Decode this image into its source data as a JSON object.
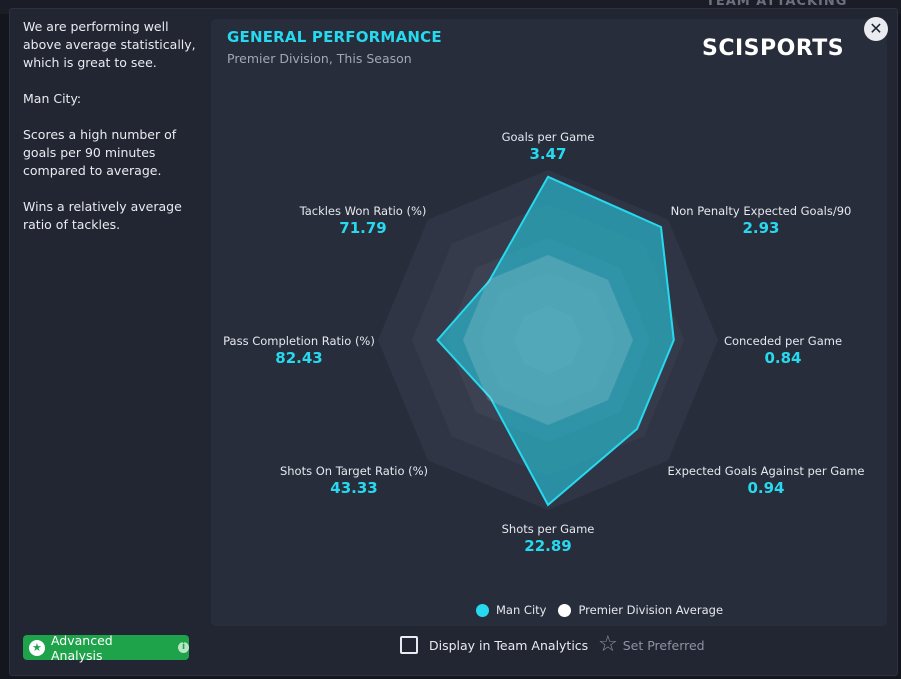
{
  "background": {
    "title": "TEAM ATTACKING"
  },
  "description": {
    "paragraphs": [
      "We are performing well above average statistically, which is great to see.",
      "Man City:",
      "Scores a high number of goals per 90 minutes compared to average.",
      "Wins a relatively average ratio of tackles."
    ]
  },
  "panel": {
    "title": "GENERAL PERFORMANCE",
    "subtitle": "Premier Division, This Season",
    "brand": "SCISPORTS",
    "close_icon": "close-icon"
  },
  "chart_data": {
    "type": "radar",
    "axes": [
      {
        "label": "Goals per Game",
        "value": "3.47"
      },
      {
        "label": "Non Penalty Expected Goals/90",
        "value": "2.93"
      },
      {
        "label": "Conceded per Game",
        "value": "0.84"
      },
      {
        "label": "Expected Goals Against per Game",
        "value": "0.94"
      },
      {
        "label": "Shots per Game",
        "value": "22.89"
      },
      {
        "label": "Shots On Target Ratio (%)",
        "value": "43.33"
      },
      {
        "label": "Pass Completion Ratio (%)",
        "value": "82.43"
      },
      {
        "label": "Tackles Won Ratio (%)",
        "value": "71.79"
      }
    ],
    "series": [
      {
        "name": "Man City",
        "color": "#27d9ee",
        "scores": [
          0.96,
          0.94,
          0.74,
          0.74,
          0.97,
          0.48,
          0.65,
          0.49
        ]
      },
      {
        "name": "Premier Division Average",
        "color": "#ffffff",
        "scores": [
          0.5,
          0.5,
          0.5,
          0.5,
          0.5,
          0.5,
          0.5,
          0.5
        ]
      }
    ]
  },
  "legend": [
    {
      "label": "Man City",
      "color": "#27d9ee"
    },
    {
      "label": "Premier Division Average",
      "color": "#ffffff"
    }
  ],
  "footer": {
    "advanced_analysis_label": "Advanced Analysis",
    "display_toggle_label": "Display in Team Analytics",
    "display_toggle_checked": false,
    "set_preferred_label": "Set Preferred"
  }
}
